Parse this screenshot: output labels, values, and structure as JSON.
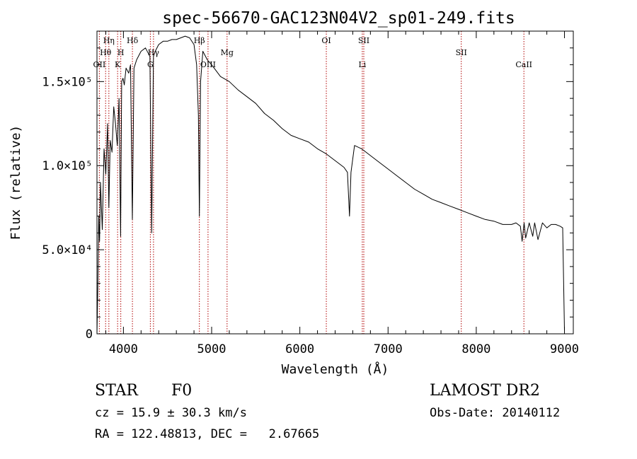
{
  "chart_data": {
    "type": "line",
    "title": "spec-56670-GAC123N04V2_sp01-249.fits",
    "xlabel": "Wavelength (Å)",
    "ylabel": "Flux (relative)",
    "xlim": [
      3700,
      9100
    ],
    "ylim": [
      0,
      180000
    ],
    "x_ticks": [
      {
        "value": 4000,
        "label": "4000"
      },
      {
        "value": 5000,
        "label": "5000"
      },
      {
        "value": 6000,
        "label": "6000"
      },
      {
        "value": 7000,
        "label": "7000"
      },
      {
        "value": 8000,
        "label": "8000"
      },
      {
        "value": 9000,
        "label": "9000"
      }
    ],
    "y_ticks": [
      {
        "value": 0,
        "label": "0"
      },
      {
        "value": 50000,
        "label": "5.0×10⁴"
      },
      {
        "value": 100000,
        "label": "1.0×10⁵"
      },
      {
        "value": 150000,
        "label": "1.5×10⁵"
      }
    ],
    "grid": false,
    "series": [
      {
        "x": [
          3700,
          3710,
          3720,
          3730,
          3740,
          3760,
          3780,
          3800,
          3820,
          3835,
          3850,
          3870,
          3890,
          3910,
          3930,
          3950,
          3968,
          3980,
          3995,
          4010,
          4030,
          4060,
          4080,
          4101,
          4120,
          4150,
          4200,
          4250,
          4300,
          4320,
          4340,
          4360,
          4400,
          4450,
          4500,
          4550,
          4600,
          4650,
          4700,
          4750,
          4800,
          4830,
          4850,
          4861,
          4875,
          4900,
          4950,
          5000,
          5100,
          5200,
          5300,
          5400,
          5500,
          5600,
          5700,
          5800,
          5900,
          6000,
          6100,
          6200,
          6300,
          6400,
          6500,
          6540,
          6563,
          6580,
          6620,
          6700,
          6800,
          6900,
          7000,
          7100,
          7200,
          7300,
          7400,
          7500,
          7600,
          7700,
          7800,
          7900,
          8000,
          8100,
          8200,
          8300,
          8400,
          8450,
          8500,
          8520,
          8542,
          8560,
          8600,
          8640,
          8662,
          8700,
          8750,
          8800,
          8850,
          8900,
          8950,
          8980,
          9000
        ],
        "y": [
          0,
          28000,
          70000,
          55000,
          90000,
          62000,
          110000,
          95000,
          125000,
          75000,
          115000,
          108000,
          135000,
          125000,
          112000,
          140000,
          58000,
          150000,
          152000,
          148000,
          158000,
          155000,
          160000,
          68000,
          158000,
          163000,
          168000,
          170000,
          165000,
          60000,
          165000,
          168000,
          172000,
          174000,
          174000,
          175000,
          175000,
          176000,
          177000,
          176000,
          172000,
          160000,
          130000,
          70000,
          150000,
          168000,
          163000,
          160000,
          153000,
          150000,
          145000,
          141000,
          137000,
          131000,
          127000,
          122000,
          118000,
          116000,
          114000,
          110000,
          107000,
          103000,
          99000,
          96000,
          70000,
          96000,
          112000,
          110000,
          106000,
          102000,
          98000,
          94000,
          90000,
          86000,
          83000,
          80000,
          78000,
          76000,
          74000,
          72000,
          70000,
          68000,
          67000,
          65000,
          65000,
          66000,
          64000,
          55000,
          66000,
          57000,
          66000,
          58000,
          66000,
          56000,
          66000,
          63000,
          65000,
          65000,
          64000,
          63000,
          2000
        ]
      }
    ],
    "lines": [
      {
        "x": 3727,
        "label": "OII",
        "row": 3
      },
      {
        "x": 3798,
        "label": "Hθ",
        "row": 2
      },
      {
        "x": 3835,
        "label": "Hη",
        "row": 1
      },
      {
        "x": 3934,
        "label": "K",
        "row": 3
      },
      {
        "x": 3970,
        "label": "H",
        "row": 2
      },
      {
        "x": 4102,
        "label": "Hδ",
        "row": 1
      },
      {
        "x": 4305,
        "label": "G",
        "row": 3
      },
      {
        "x": 4341,
        "label": "Hγ",
        "row": 2
      },
      {
        "x": 4861,
        "label": "Hβ",
        "row": 1
      },
      {
        "x": 4959,
        "label": "OIII",
        "row": 3
      },
      {
        "x": 5175,
        "label": "Mg",
        "row": 2
      },
      {
        "x": 6300,
        "label": "OI",
        "row": 1
      },
      {
        "x": 6708,
        "label": "Li",
        "row": 3
      },
      {
        "x": 6725,
        "label": "SII",
        "row": 1
      },
      {
        "x": 7830,
        "label": "SII",
        "row": 2
      },
      {
        "x": 8540,
        "label": "CaII",
        "row": 3
      }
    ]
  },
  "info": {
    "class": "STAR",
    "subclass": "F0",
    "survey": "LAMOST DR2",
    "cz": "cz = 15.9 ± 30.3 km/s",
    "obs_date": "Obs-Date: 20140112",
    "radec": "RA = 122.48813, DEC =   2.67665"
  }
}
